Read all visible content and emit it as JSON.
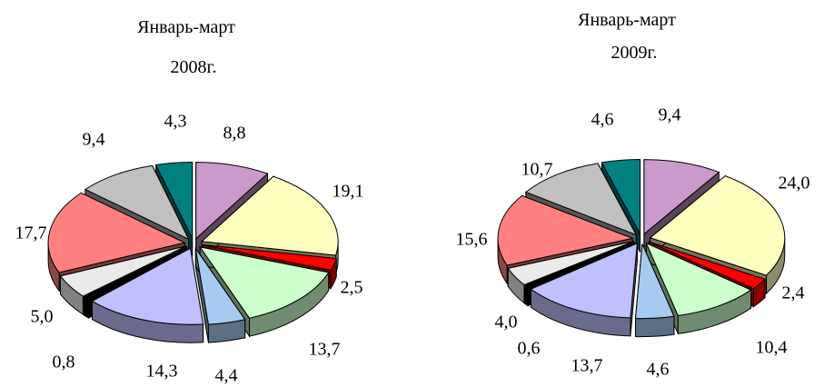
{
  "chart_data": [
    {
      "type": "pie",
      "title_line1": "Январь-март",
      "title_line2": "2008г.",
      "slices": [
        {
          "value": 8.8,
          "label": "8,8",
          "color": "#cc99cc"
        },
        {
          "value": 19.1,
          "label": "19,1",
          "color": "#ffffc0"
        },
        {
          "value": 2.5,
          "label": "2,5",
          "color": "#ff0000"
        },
        {
          "value": 13.7,
          "label": "13,7",
          "color": "#ccffcc"
        },
        {
          "value": 4.4,
          "label": "4,4",
          "color": "#a6caf0"
        },
        {
          "value": 14.3,
          "label": "14,3",
          "color": "#c0c0ff"
        },
        {
          "value": 0.8,
          "label": "0,8",
          "color": "#000000"
        },
        {
          "value": 5.0,
          "label": "5,0",
          "color": "#eaeaea"
        },
        {
          "value": 17.7,
          "label": "17,7",
          "color": "#ff8080"
        },
        {
          "value": 9.4,
          "label": "9,4",
          "color": "#c0c0c0"
        },
        {
          "value": 4.3,
          "label": "4,3",
          "color": "#008080"
        }
      ]
    },
    {
      "type": "pie",
      "title_line1": "Январь-март",
      "title_line2": "2009г.",
      "slices": [
        {
          "value": 9.4,
          "label": "9,4",
          "color": "#cc99cc"
        },
        {
          "value": 24.0,
          "label": "24,0",
          "color": "#ffffc0"
        },
        {
          "value": 2.4,
          "label": "2,4",
          "color": "#ff0000"
        },
        {
          "value": 10.4,
          "label": "10,4",
          "color": "#ccffcc"
        },
        {
          "value": 4.6,
          "label": "4,6",
          "color": "#a6caf0"
        },
        {
          "value": 13.7,
          "label": "13,7",
          "color": "#c0c0ff"
        },
        {
          "value": 0.6,
          "label": "0,6",
          "color": "#000000"
        },
        {
          "value": 4.0,
          "label": "4,0",
          "color": "#eaeaea"
        },
        {
          "value": 15.6,
          "label": "15,6",
          "color": "#ff8080"
        },
        {
          "value": 10.7,
          "label": "10,7",
          "color": "#c0c0c0"
        },
        {
          "value": 4.6,
          "label": "4,6",
          "color": "#008080"
        }
      ]
    }
  ]
}
